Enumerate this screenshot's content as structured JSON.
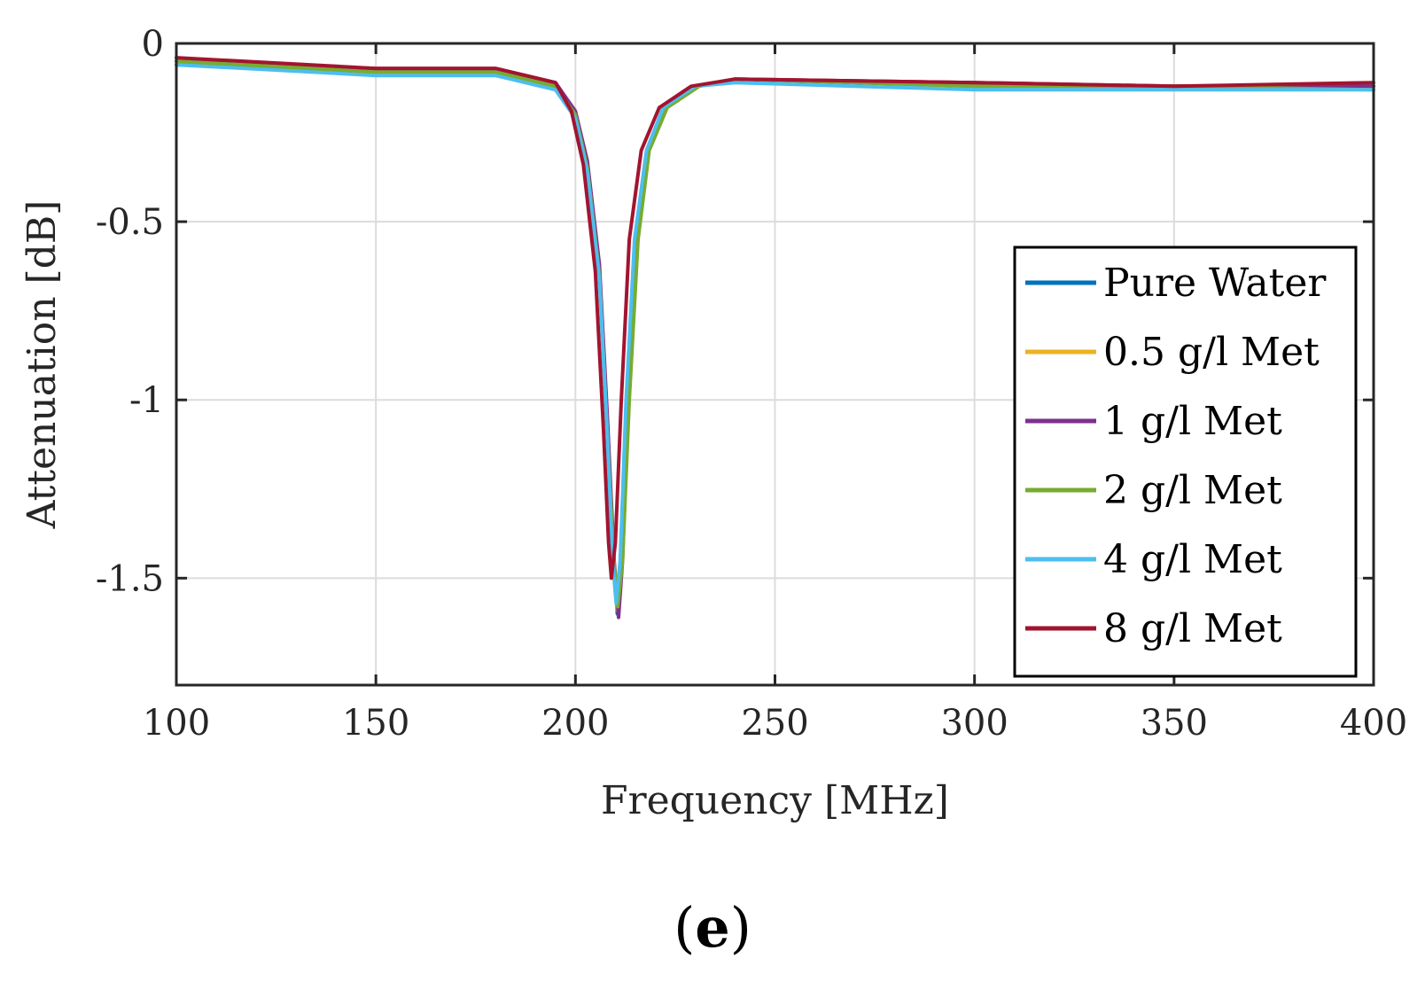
{
  "chart_data": {
    "type": "line",
    "title": "",
    "xlabel": "Frequency [MHz]",
    "ylabel": "Attenuation [dB]",
    "xlim": [
      100,
      400
    ],
    "ylim": [
      -1.8,
      0
    ],
    "xticks": [
      100,
      150,
      200,
      250,
      300,
      350,
      400
    ],
    "xtick_labels": [
      "100",
      "150",
      "200",
      "250",
      "300",
      "350",
      "400"
    ],
    "yticks": [
      0,
      -0.5,
      -1,
      -1.5
    ],
    "ytick_labels": [
      "0",
      "-0.5",
      "-1",
      "-1.5"
    ],
    "grid": true,
    "legend_position": "right",
    "series": [
      {
        "name": "Pure Water",
        "color": "#0072BD",
        "x": [
          100,
          150,
          180,
          195,
          200,
          203,
          206,
          208,
          209.5,
          210.5,
          211.5,
          213,
          215,
          218,
          222,
          230,
          240,
          300,
          350,
          400
        ],
        "y": [
          -0.06,
          -0.08,
          -0.08,
          -0.12,
          -0.2,
          -0.35,
          -0.65,
          -1.1,
          -1.45,
          -1.6,
          -1.45,
          -1.0,
          -0.55,
          -0.3,
          -0.18,
          -0.12,
          -0.1,
          -0.12,
          -0.12,
          -0.12
        ]
      },
      {
        "name": "0.5 g/l Met",
        "color": "#EDB120",
        "x": [
          100,
          150,
          180,
          195,
          200,
          203,
          206,
          208,
          209.5,
          210.5,
          211.5,
          213,
          215,
          218,
          222,
          230,
          240,
          300,
          350,
          400
        ],
        "y": [
          -0.05,
          -0.08,
          -0.08,
          -0.12,
          -0.2,
          -0.34,
          -0.64,
          -1.08,
          -1.44,
          -1.59,
          -1.44,
          -1.0,
          -0.55,
          -0.3,
          -0.18,
          -0.12,
          -0.1,
          -0.11,
          -0.12,
          -0.12
        ]
      },
      {
        "name": "1 g/l Met",
        "color": "#7E2F8E",
        "x": [
          100,
          150,
          180,
          195,
          200,
          203,
          206,
          208,
          209.7,
          210.8,
          211.8,
          213.3,
          215.3,
          218,
          222,
          230,
          240,
          300,
          350,
          400
        ],
        "y": [
          -0.05,
          -0.07,
          -0.07,
          -0.11,
          -0.19,
          -0.33,
          -0.62,
          -1.05,
          -1.45,
          -1.61,
          -1.45,
          -1.0,
          -0.55,
          -0.3,
          -0.18,
          -0.12,
          -0.1,
          -0.11,
          -0.12,
          -0.12
        ]
      },
      {
        "name": "2 g/l Met",
        "color": "#77AC30",
        "x": [
          100,
          150,
          180,
          195,
          200,
          203,
          206,
          208,
          209.6,
          210.6,
          211.8,
          213.5,
          215.7,
          218.5,
          223,
          231,
          242,
          300,
          350,
          400
        ],
        "y": [
          -0.05,
          -0.08,
          -0.08,
          -0.12,
          -0.2,
          -0.35,
          -0.65,
          -1.1,
          -1.45,
          -1.58,
          -1.45,
          -1.0,
          -0.55,
          -0.3,
          -0.18,
          -0.12,
          -0.1,
          -0.12,
          -0.12,
          -0.13
        ]
      },
      {
        "name": "4 g/l Met",
        "color": "#4DBEEE",
        "x": [
          100,
          150,
          180,
          195,
          200,
          203,
          206,
          208,
          209.3,
          210.2,
          211.2,
          212.7,
          214.8,
          217.8,
          222,
          230,
          240,
          300,
          350,
          400
        ],
        "y": [
          -0.06,
          -0.09,
          -0.09,
          -0.13,
          -0.21,
          -0.36,
          -0.66,
          -1.1,
          -1.45,
          -1.57,
          -1.45,
          -1.0,
          -0.55,
          -0.3,
          -0.18,
          -0.12,
          -0.11,
          -0.13,
          -0.13,
          -0.13
        ]
      },
      {
        "name": "8 g/l Met",
        "color": "#A2142F",
        "x": [
          100,
          150,
          180,
          195,
          199,
          202,
          205,
          207,
          208.3,
          209.0,
          210.0,
          211.5,
          213.5,
          216.5,
          221,
          229,
          240,
          300,
          350,
          400
        ],
        "y": [
          -0.04,
          -0.07,
          -0.07,
          -0.11,
          -0.19,
          -0.34,
          -0.64,
          -1.08,
          -1.4,
          -1.5,
          -1.4,
          -1.0,
          -0.55,
          -0.3,
          -0.18,
          -0.12,
          -0.1,
          -0.11,
          -0.12,
          -0.11
        ]
      }
    ]
  },
  "panel_label": "e"
}
